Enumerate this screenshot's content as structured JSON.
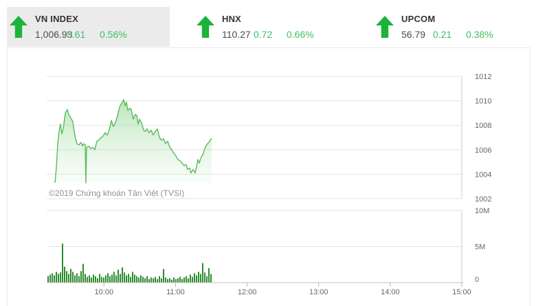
{
  "header": {
    "indices": [
      {
        "name": "VN INDEX",
        "value": "1,006.93",
        "change": "5.61",
        "percent": "0.56%",
        "direction": "up",
        "active": true
      },
      {
        "name": "HNX",
        "value": "110.27",
        "change": "0.72",
        "percent": "0.66%",
        "direction": "up",
        "active": false
      },
      {
        "name": "UPCOM",
        "value": "56.79",
        "change": "0.21",
        "percent": "0.38%",
        "direction": "up",
        "active": false
      }
    ]
  },
  "colors": {
    "arrow_up_green": "#1cb438",
    "change_text_green": "#3fbf62",
    "price_line_green": "#5aba5e",
    "area_fill_top": "rgba(118,204,118,0.50)",
    "area_fill_bottom": "rgba(190,230,190,0.10)",
    "volume_bar_green": "#2d8a2d",
    "active_tab_bg": "#ebebeb",
    "gridline": "#e3e3e3",
    "axis_line": "#c2c2c2",
    "border": "#cccccc",
    "tick_text": "#666666"
  },
  "chart_data": [
    {
      "type": "area",
      "name": "VN INDEX intraday price",
      "x_unit": "time_of_day_hours",
      "x_range": [
        9.2,
        15.0
      ],
      "x_ticks": [
        {
          "t": 10,
          "label": "10:00"
        },
        {
          "t": 11,
          "label": "11:00"
        },
        {
          "t": 12,
          "label": "12:00"
        },
        {
          "t": 13,
          "label": "13:00"
        },
        {
          "t": 14,
          "label": "14:00"
        },
        {
          "t": 15,
          "label": "15:00"
        }
      ],
      "ylim": [
        1002,
        1012
      ],
      "y_ticks": [
        1012,
        1010,
        1008,
        1006,
        1004,
        1002
      ],
      "grid": true,
      "annotation": "©2019 Chứng khoán Tân Việt (TVSI)",
      "series": [
        {
          "name": "VN INDEX",
          "last_value": 1006.93,
          "points": [
            [
              9.315,
              1003.3
            ],
            [
              9.334,
              1004.5
            ],
            [
              9.353,
              1006.4
            ],
            [
              9.372,
              1007.5
            ],
            [
              9.392,
              1008.1
            ],
            [
              9.411,
              1007.3
            ],
            [
              9.43,
              1007.7
            ],
            [
              9.459,
              1009.0
            ],
            [
              9.488,
              1009.3
            ],
            [
              9.507,
              1008.9
            ],
            [
              9.536,
              1008.6
            ],
            [
              9.565,
              1008.3
            ],
            [
              9.584,
              1007.5
            ],
            [
              9.603,
              1006.9
            ],
            [
              9.622,
              1006.5
            ],
            [
              9.651,
              1006.4
            ],
            [
              9.68,
              1006.6
            ],
            [
              9.699,
              1006.3
            ],
            [
              9.718,
              1006.5
            ],
            [
              9.738,
              1006.4
            ],
            [
              9.747,
              1003.3
            ],
            [
              9.757,
              1006.2
            ],
            [
              9.786,
              1006.3
            ],
            [
              9.815,
              1006.1
            ],
            [
              9.843,
              1006.2
            ],
            [
              9.872,
              1006.0
            ],
            [
              9.901,
              1006.7
            ],
            [
              9.93,
              1006.8
            ],
            [
              9.959,
              1007.0
            ],
            [
              9.987,
              1007.1
            ],
            [
              10.016,
              1007.4
            ],
            [
              10.045,
              1007.2
            ],
            [
              10.074,
              1007.6
            ],
            [
              10.103,
              1008.4
            ],
            [
              10.131,
              1007.9
            ],
            [
              10.16,
              1008.2
            ],
            [
              10.189,
              1008.8
            ],
            [
              10.218,
              1009.5
            ],
            [
              10.247,
              1009.8
            ],
            [
              10.275,
              1010.1
            ],
            [
              10.295,
              1009.6
            ],
            [
              10.314,
              1009.9
            ],
            [
              10.333,
              1009.2
            ],
            [
              10.362,
              1009.4
            ],
            [
              10.381,
              1009.3
            ],
            [
              10.41,
              1008.5
            ],
            [
              10.439,
              1008.9
            ],
            [
              10.458,
              1008.8
            ],
            [
              10.477,
              1008.1
            ],
            [
              10.496,
              1008.5
            ],
            [
              10.525,
              1008.2
            ],
            [
              10.554,
              1007.6
            ],
            [
              10.573,
              1007.5
            ],
            [
              10.602,
              1007.7
            ],
            [
              10.631,
              1007.4
            ],
            [
              10.66,
              1007.6
            ],
            [
              10.688,
              1007.2
            ],
            [
              10.717,
              1007.5
            ],
            [
              10.746,
              1007.7
            ],
            [
              10.775,
              1007.0
            ],
            [
              10.804,
              1006.8
            ],
            [
              10.832,
              1006.9
            ],
            [
              10.861,
              1006.5
            ],
            [
              10.89,
              1006.7
            ],
            [
              10.919,
              1006.2
            ],
            [
              10.948,
              1006.0
            ],
            [
              10.976,
              1005.7
            ],
            [
              11.005,
              1005.5
            ],
            [
              11.034,
              1005.2
            ],
            [
              11.063,
              1005.1
            ],
            [
              11.092,
              1004.9
            ],
            [
              11.12,
              1004.7
            ],
            [
              11.149,
              1004.8
            ],
            [
              11.168,
              1004.4
            ],
            [
              11.197,
              1004.5
            ],
            [
              11.216,
              1004.1
            ],
            [
              11.245,
              1004.4
            ],
            [
              11.274,
              1004.1
            ],
            [
              11.293,
              1004.6
            ],
            [
              11.312,
              1005.2
            ],
            [
              11.331,
              1004.9
            ],
            [
              11.351,
              1005.3
            ],
            [
              11.37,
              1005.5
            ],
            [
              11.389,
              1005.7
            ],
            [
              11.408,
              1006.1
            ],
            [
              11.427,
              1006.3
            ],
            [
              11.446,
              1006.5
            ],
            [
              11.466,
              1006.6
            ],
            [
              11.485,
              1006.8
            ],
            [
              11.504,
              1006.93
            ]
          ]
        }
      ]
    },
    {
      "type": "bar",
      "name": "VN INDEX intraday volume",
      "ylim_millions": [
        0,
        10
      ],
      "y_ticks": [
        {
          "m": 10,
          "label": "10M"
        },
        {
          "m": 5,
          "label": "5M"
        },
        {
          "m": 0,
          "label": "0"
        }
      ],
      "bar_start_hour": 9.21,
      "bar_step_hour": 0.0288,
      "values_millions": [
        0.9,
        1.1,
        1.3,
        1.0,
        1.5,
        1.2,
        1.4,
        5.4,
        2.2,
        1.6,
        1.2,
        1.9,
        1.5,
        1.0,
        1.3,
        0.9,
        1.6,
        2.6,
        1.2,
        0.8,
        1.0,
        0.7,
        1.1,
        0.9,
        0.6,
        1.2,
        0.8,
        0.7,
        1.0,
        1.3,
        0.9,
        1.1,
        1.5,
        1.0,
        1.8,
        1.2,
        2.1,
        1.4,
        1.0,
        1.2,
        0.8,
        1.5,
        1.1,
        0.9,
        0.7,
        1.0,
        0.8,
        0.6,
        0.9,
        0.5,
        0.7,
        0.6,
        0.8,
        0.5,
        0.9,
        0.6,
        1.9,
        0.7,
        0.5,
        0.6,
        0.4,
        0.7,
        0.5,
        0.6,
        0.8,
        0.5,
        0.7,
        0.9,
        0.6,
        1.1,
        0.8,
        1.3,
        1.0,
        1.5,
        1.2,
        2.7,
        1.4,
        0.9,
        2.0,
        1.2
      ]
    }
  ]
}
